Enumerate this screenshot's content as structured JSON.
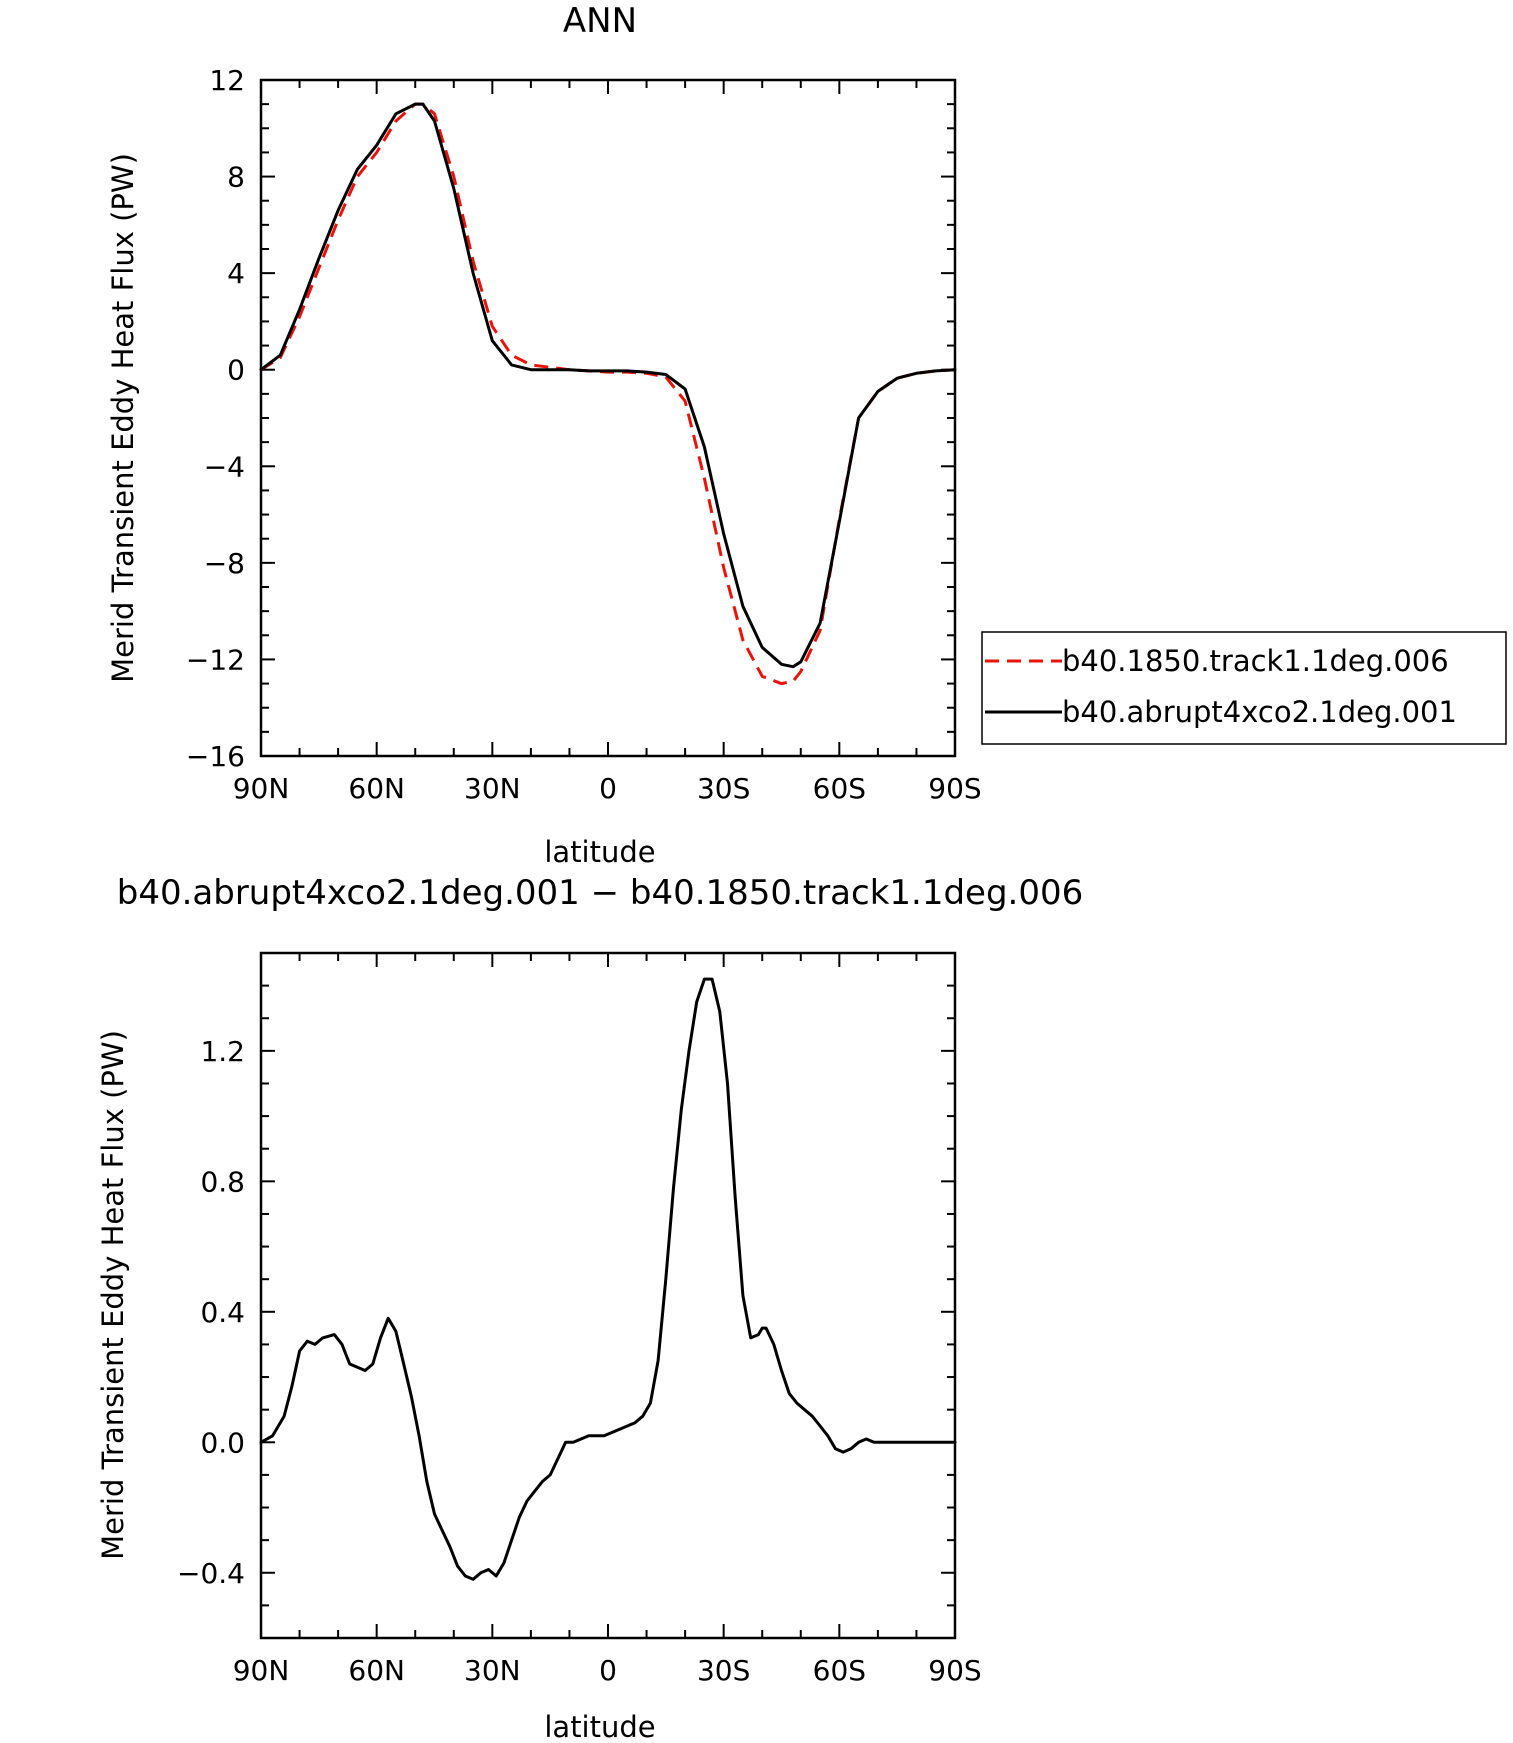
{
  "chart_data": [
    {
      "type": "line",
      "title": "ANN",
      "xlabel": "latitude",
      "ylabel": "Merid Transient Eddy Heat Flux (PW)",
      "xlim": [
        90,
        -90
      ],
      "ylim": [
        -16,
        12
      ],
      "xticks": [
        90,
        60,
        30,
        0,
        -30,
        -60,
        -90
      ],
      "xtick_labels": [
        "90N",
        "60N",
        "30N",
        "0",
        "30S",
        "60S",
        "90S"
      ],
      "yticks": [
        12,
        8,
        4,
        0,
        -4,
        -8,
        -12,
        -16
      ],
      "ytick_labels": [
        "12",
        "8",
        "4",
        "0",
        "−4",
        "−8",
        "−12",
        "−16"
      ],
      "legend": {
        "position": "right"
      },
      "series": [
        {
          "name": "b40.1850.track1.1deg.006",
          "color": "#e8140c",
          "style": "dashed",
          "x": [
            90,
            85,
            80,
            75,
            70,
            65,
            60,
            55,
            50,
            48,
            45,
            40,
            35,
            30,
            25,
            20,
            15,
            10,
            5,
            0,
            -5,
            -10,
            -15,
            -20,
            -25,
            -30,
            -35,
            -40,
            -45,
            -48,
            -50,
            -55,
            -60,
            -65,
            -70,
            -75,
            -80,
            -85,
            -90
          ],
          "y": [
            0,
            0.5,
            2.2,
            4.2,
            6.2,
            8.0,
            9.0,
            10.3,
            11.0,
            11.0,
            10.6,
            8.0,
            4.5,
            1.8,
            0.6,
            0.2,
            0.1,
            0.0,
            -0.05,
            -0.1,
            -0.1,
            -0.15,
            -0.3,
            -1.3,
            -4.5,
            -8.2,
            -11.2,
            -12.7,
            -13.0,
            -12.9,
            -12.5,
            -10.8,
            -6.2,
            -2.0,
            -0.9,
            -0.35,
            -0.15,
            -0.05,
            0
          ]
        },
        {
          "name": "b40.abrupt4xco2.1deg.001",
          "color": "#000000",
          "style": "solid",
          "x": [
            90,
            85,
            80,
            75,
            70,
            65,
            60,
            55,
            50,
            48,
            45,
            40,
            35,
            30,
            25,
            20,
            15,
            10,
            5,
            0,
            -5,
            -10,
            -15,
            -20,
            -25,
            -30,
            -35,
            -40,
            -45,
            -48,
            -50,
            -55,
            -60,
            -65,
            -70,
            -75,
            -80,
            -85,
            -90
          ],
          "y": [
            0,
            0.6,
            2.5,
            4.6,
            6.6,
            8.3,
            9.3,
            10.6,
            11.0,
            11.0,
            10.3,
            7.5,
            4.0,
            1.2,
            0.2,
            0.0,
            0.0,
            0.0,
            -0.05,
            -0.05,
            -0.05,
            -0.1,
            -0.2,
            -0.8,
            -3.2,
            -6.8,
            -9.8,
            -11.5,
            -12.2,
            -12.3,
            -12.1,
            -10.5,
            -6.3,
            -2.0,
            -0.9,
            -0.35,
            -0.15,
            -0.05,
            0
          ]
        }
      ]
    },
    {
      "type": "line",
      "title": "b40.abrupt4xco2.1deg.001 − b40.1850.track1.1deg.006",
      "xlabel": "latitude",
      "ylabel": "Merid Transient Eddy Heat Flux (PW)",
      "xlim": [
        90,
        -90
      ],
      "ylim": [
        -0.6,
        1.5
      ],
      "xticks": [
        90,
        60,
        30,
        0,
        -30,
        -60,
        -90
      ],
      "xtick_labels": [
        "90N",
        "60N",
        "30N",
        "0",
        "30S",
        "60S",
        "90S"
      ],
      "yticks": [
        1.2,
        0.8,
        0.4,
        0.0,
        -0.4
      ],
      "ytick_labels": [
        "1.2",
        "0.8",
        "0.4",
        "0.0",
        "−0.4"
      ],
      "series": [
        {
          "color": "#000000",
          "style": "solid",
          "x": [
            90,
            87,
            84,
            82,
            80,
            78,
            76,
            74,
            71,
            69,
            67,
            65,
            63,
            61,
            59,
            57,
            55,
            53,
            51,
            49,
            47,
            45,
            43,
            41,
            39,
            37,
            35,
            33,
            31,
            29,
            27,
            25,
            23,
            21,
            19,
            17,
            15,
            13,
            11,
            9,
            7,
            5,
            3,
            1,
            -1,
            -3,
            -5,
            -7,
            -9,
            -11,
            -13,
            -15,
            -17,
            -19,
            -21,
            -23,
            -25,
            -27,
            -29,
            -31,
            -33,
            -35,
            -37,
            -39,
            -40,
            -41,
            -43,
            -45,
            -47,
            -49,
            -51,
            -53,
            -55,
            -57,
            -59,
            -61,
            -63,
            -65,
            -67,
            -69,
            -71,
            -73,
            -75,
            -77,
            -79,
            -81,
            -83,
            -85,
            -87,
            -90
          ],
          "y": [
            0.0,
            0.02,
            0.08,
            0.17,
            0.28,
            0.31,
            0.3,
            0.32,
            0.33,
            0.3,
            0.24,
            0.23,
            0.22,
            0.24,
            0.32,
            0.38,
            0.34,
            0.24,
            0.14,
            0.02,
            -0.12,
            -0.22,
            -0.27,
            -0.32,
            -0.38,
            -0.41,
            -0.42,
            -0.4,
            -0.39,
            -0.41,
            -0.37,
            -0.3,
            -0.23,
            -0.18,
            -0.15,
            -0.12,
            -0.1,
            -0.05,
            0.0,
            0.0,
            0.01,
            0.02,
            0.02,
            0.02,
            0.03,
            0.04,
            0.05,
            0.06,
            0.08,
            0.12,
            0.25,
            0.5,
            0.78,
            1.02,
            1.2,
            1.35,
            1.42,
            1.42,
            1.32,
            1.1,
            0.75,
            0.45,
            0.32,
            0.33,
            0.35,
            0.35,
            0.3,
            0.22,
            0.15,
            0.12,
            0.1,
            0.08,
            0.05,
            0.02,
            -0.02,
            -0.03,
            -0.02,
            0.0,
            0.01,
            0.0,
            0.0,
            0.0,
            0.0,
            0.0,
            0.0,
            0.0,
            0.0,
            0.0,
            0.0,
            0.0
          ]
        }
      ]
    }
  ]
}
